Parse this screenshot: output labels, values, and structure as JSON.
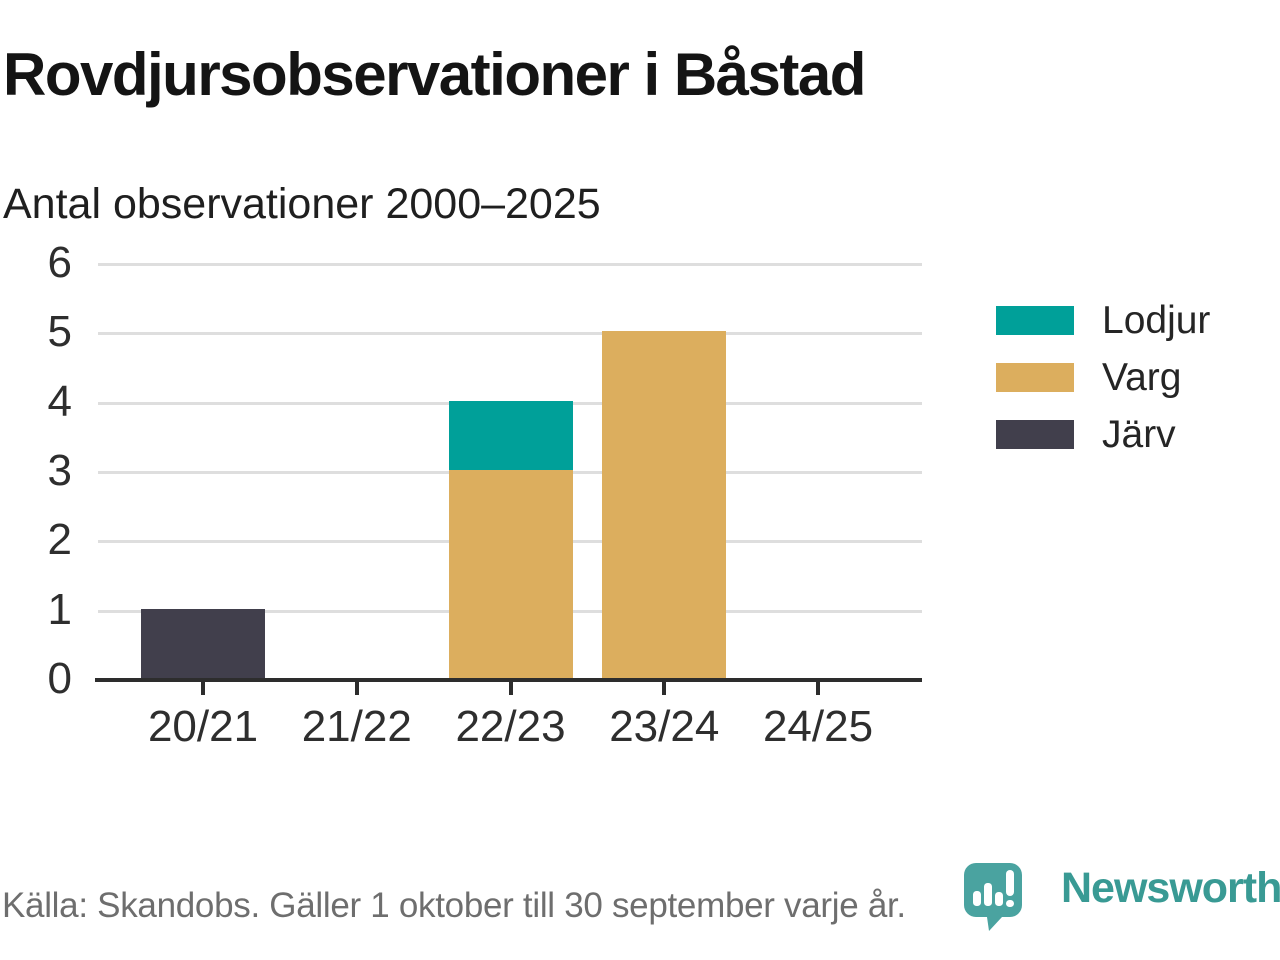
{
  "header": {
    "title": "Rovdjursobservationer i Båstad",
    "subtitle": "Antal observationer 2000–2025"
  },
  "chart_data": {
    "type": "bar",
    "stacked": true,
    "title": "Rovdjursobservationer i Båstad",
    "subtitle": "Antal observationer 2000–2025",
    "categories": [
      "20/21",
      "21/22",
      "22/23",
      "23/24",
      "24/25"
    ],
    "series": [
      {
        "name": "Lodjur",
        "color": "#00a099",
        "values": [
          0,
          0,
          1,
          0,
          0
        ]
      },
      {
        "name": "Varg",
        "color": "#dcae5e",
        "values": [
          0,
          0,
          3,
          5,
          0
        ]
      },
      {
        "name": "Järv",
        "color": "#413f4c",
        "values": [
          1,
          0,
          0,
          0,
          0
        ]
      }
    ],
    "stack_order_bottom_to_top": [
      "Järv",
      "Varg",
      "Lodjur"
    ],
    "ylim": [
      0,
      6
    ],
    "yticks": [
      0,
      1,
      2,
      3,
      4,
      5,
      6
    ],
    "grid": true,
    "legend_position": "right"
  },
  "legend": {
    "items": [
      {
        "label": "Lodjur",
        "color": "#00a099"
      },
      {
        "label": "Varg",
        "color": "#dcae5e"
      },
      {
        "label": "Järv",
        "color": "#413f4c"
      }
    ]
  },
  "footer": {
    "source": "Källa: Skandobs. Gäller 1 oktober till 30 september varje år.",
    "brand": "Newsworthy"
  },
  "colors": {
    "brand_teal": "#399a94",
    "logo_bubble": "#4aa3a0",
    "series_lodjur": "#00a099",
    "series_varg": "#dcae5e",
    "series_jarv": "#413f4c"
  }
}
